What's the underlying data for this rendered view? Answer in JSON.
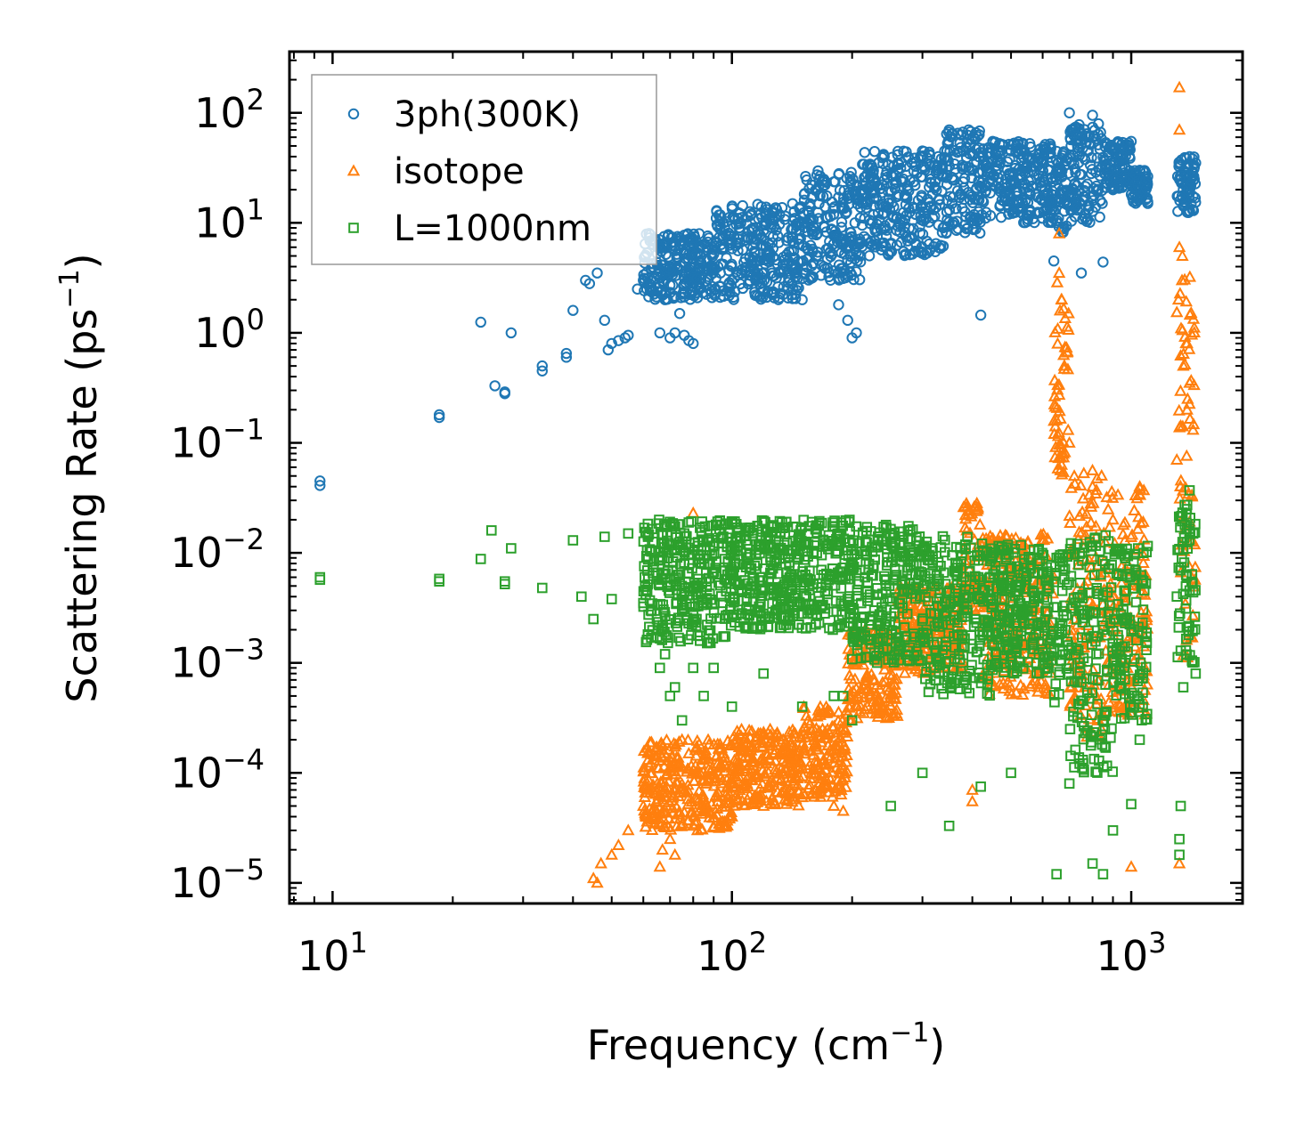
{
  "chart_data": {
    "type": "scatter",
    "title": "",
    "xlabel": "Frequency (cm",
    "xlabel_sup": "−1",
    "xlabel_end": ")",
    "ylabel": "Scattering Rate (ps",
    "ylabel_sup": "−1",
    "ylabel_end": ")",
    "xscale": "log",
    "yscale": "log",
    "xlim": [
      7.8,
      1900
    ],
    "ylim": [
      6.5e-06,
      360
    ],
    "x_ticks": [
      {
        "value": 10,
        "base": "10",
        "exp": "1"
      },
      {
        "value": 100,
        "base": "10",
        "exp": "2"
      },
      {
        "value": 1000,
        "base": "10",
        "exp": "3"
      }
    ],
    "y_ticks": [
      {
        "value": 100,
        "base": "10",
        "exp": "2"
      },
      {
        "value": 10,
        "base": "10",
        "exp": "1"
      },
      {
        "value": 1,
        "base": "10",
        "exp": "0"
      },
      {
        "value": 0.1,
        "base": "10",
        "exp": "−1"
      },
      {
        "value": 0.01,
        "base": "10",
        "exp": "−2"
      },
      {
        "value": 0.001,
        "base": "10",
        "exp": "−3"
      },
      {
        "value": 0.0001,
        "base": "10",
        "exp": "−4"
      },
      {
        "value": 1e-05,
        "base": "10",
        "exp": "−5"
      }
    ],
    "legend_position": "top-left",
    "series": [
      {
        "name": "3ph(300K)",
        "marker": "circle",
        "color": "#1f77b4",
        "points": [
          [
            9.3,
            0.045
          ],
          [
            9.3,
            0.041
          ],
          [
            18.5,
            0.18
          ],
          [
            18.5,
            0.17
          ],
          [
            23.5,
            1.25
          ],
          [
            25.5,
            0.33
          ],
          [
            27,
            0.29
          ],
          [
            27,
            0.28
          ],
          [
            28,
            1.0
          ],
          [
            33.5,
            0.5
          ],
          [
            33.5,
            0.45
          ],
          [
            38.5,
            0.65
          ],
          [
            38.5,
            0.6
          ],
          [
            40,
            1.6
          ],
          [
            43,
            3.0
          ],
          [
            44,
            2.8
          ],
          [
            46,
            3.5
          ],
          [
            48,
            1.3
          ],
          [
            49,
            0.7
          ],
          [
            50,
            0.8
          ],
          [
            52,
            0.85
          ],
          [
            54,
            0.9
          ],
          [
            55,
            0.95
          ],
          [
            58,
            2.5
          ],
          [
            60,
            3.0
          ],
          [
            62,
            8.0
          ],
          [
            64,
            7.0
          ],
          [
            66,
            1.0
          ],
          [
            68,
            2.0
          ],
          [
            70,
            0.9
          ],
          [
            72,
            1.0
          ],
          [
            74,
            1.5
          ],
          [
            76,
            0.95
          ],
          [
            78,
            0.85
          ],
          [
            80,
            0.8
          ],
          [
            100,
            3.0
          ],
          [
            120,
            2.5
          ],
          [
            150,
            2.0
          ],
          [
            170,
            4.0
          ],
          [
            185,
            1.8
          ],
          [
            195,
            1.3
          ],
          [
            200,
            0.9
          ],
          [
            205,
            1.0
          ],
          [
            210,
            5.0
          ],
          [
            300,
            45
          ],
          [
            350,
            70
          ],
          [
            400,
            30
          ],
          [
            420,
            1.45
          ],
          [
            450,
            55
          ],
          [
            500,
            45
          ],
          [
            550,
            40
          ],
          [
            600,
            35
          ],
          [
            640,
            4.5
          ],
          [
            700,
            100
          ],
          [
            750,
            3.5
          ],
          [
            800,
            95
          ],
          [
            850,
            4.4
          ],
          [
            900,
            20
          ],
          [
            950,
            40
          ],
          [
            1000,
            55
          ],
          [
            1050,
            30
          ],
          [
            1100,
            15
          ],
          [
            1320,
            25
          ],
          [
            1350,
            20
          ],
          [
            1400,
            40
          ],
          [
            1450,
            35
          ]
        ],
        "bands": [
          {
            "x": [
              60,
              90
            ],
            "ylo": 2.0,
            "yhi": 8.0
          },
          {
            "x": [
              90,
              150
            ],
            "ylo": 2.0,
            "yhi": 15.0
          },
          {
            "x": [
              150,
              210
            ],
            "ylo": 3.0,
            "yhi": 30.0
          },
          {
            "x": [
              210,
              340
            ],
            "ylo": 5.0,
            "yhi": 45.0
          },
          {
            "x": [
              340,
              420
            ],
            "ylo": 8.0,
            "yhi": 70.0
          },
          {
            "x": [
              420,
              640
            ],
            "ylo": 10.0,
            "yhi": 55.0
          },
          {
            "x": [
              640,
              700
            ],
            "ylo": 8.0,
            "yhi": 45.0
          },
          {
            "x": [
              700,
              850
            ],
            "ylo": 10.0,
            "yhi": 80.0
          },
          {
            "x": [
              850,
              1000
            ],
            "ylo": 20.0,
            "yhi": 55.0
          },
          {
            "x": [
              1000,
              1100
            ],
            "ylo": 15.0,
            "yhi": 30.0
          },
          {
            "x": [
              1300,
              1450
            ],
            "ylo": 12.0,
            "yhi": 40.0
          }
        ]
      },
      {
        "name": "isotope",
        "marker": "triangle",
        "color": "#ff7f0e",
        "points": [
          [
            45,
            1.1e-05
          ],
          [
            46,
            1e-05
          ],
          [
            47,
            1.5e-05
          ],
          [
            50,
            1.8e-05
          ],
          [
            52,
            2.2e-05
          ],
          [
            55,
            3e-05
          ],
          [
            60,
            5e-05
          ],
          [
            63,
            7e-05
          ],
          [
            66,
            1.4e-05
          ],
          [
            67,
            2e-05
          ],
          [
            70,
            2.5e-05
          ],
          [
            72,
            1.8e-05
          ],
          [
            75,
            0.0002
          ],
          [
            78,
            0.00015
          ],
          [
            80,
            0.023
          ],
          [
            100,
            4e-05
          ],
          [
            120,
            5e-05
          ],
          [
            150,
            6e-05
          ],
          [
            180,
            5e-05
          ],
          [
            190,
            4.5e-05
          ],
          [
            400,
            5.5e-05
          ],
          [
            400,
            7e-05
          ],
          [
            660,
            8.0
          ],
          [
            660,
            3.5
          ],
          [
            670,
            2.0
          ],
          [
            680,
            0.5
          ],
          [
            700,
            0.1
          ],
          [
            720,
            0.05
          ],
          [
            800,
            0.04
          ],
          [
            900,
            0.02
          ],
          [
            1000,
            1.4e-05
          ],
          [
            1050,
            0.04
          ],
          [
            1320,
            170
          ],
          [
            1320,
            70
          ],
          [
            1320,
            6.0
          ],
          [
            1340,
            3.0
          ],
          [
            1350,
            0.5
          ],
          [
            1380,
            0.2
          ],
          [
            1400,
            0.35
          ],
          [
            1320,
            1.5e-05
          ]
        ],
        "bands": [
          {
            "x": [
              60,
              100
            ],
            "ylo": 3e-05,
            "yhi": 0.0002
          },
          {
            "x": [
              100,
              150
            ],
            "ylo": 5e-05,
            "yhi": 0.00025
          },
          {
            "x": [
              150,
              195
            ],
            "ylo": 6e-05,
            "yhi": 0.0004
          },
          {
            "x": [
              195,
              260
            ],
            "ylo": 0.0003,
            "yhi": 0.002
          },
          {
            "x": [
              260,
              380
            ],
            "ylo": 0.0008,
            "yhi": 0.005
          },
          {
            "x": [
              380,
              420
            ],
            "ylo": 0.003,
            "yhi": 0.03
          },
          {
            "x": [
              420,
              640
            ],
            "ylo": 0.0005,
            "yhi": 0.015
          },
          {
            "x": [
              640,
              700
            ],
            "ylo": 0.05,
            "yhi": 3.0
          },
          {
            "x": [
              700,
              850
            ],
            "ylo": 0.0002,
            "yhi": 0.06
          },
          {
            "x": [
              850,
              1100
            ],
            "ylo": 0.0003,
            "yhi": 0.04
          },
          {
            "x": [
              1300,
              1450
            ],
            "ylo": 0.001,
            "yhi": 5.0
          }
        ]
      },
      {
        "name": "L=1000nm",
        "marker": "square",
        "color": "#2ca02c",
        "points": [
          [
            9.3,
            0.006
          ],
          [
            9.3,
            0.0057
          ],
          [
            18.5,
            0.0058
          ],
          [
            18.5,
            0.0055
          ],
          [
            23.5,
            0.0088
          ],
          [
            25,
            0.016
          ],
          [
            27,
            0.0055
          ],
          [
            27,
            0.0052
          ],
          [
            28,
            0.011
          ],
          [
            33.5,
            0.0048
          ],
          [
            40,
            0.013
          ],
          [
            42,
            0.004
          ],
          [
            45,
            0.0025
          ],
          [
            48,
            0.014
          ],
          [
            50,
            0.0038
          ],
          [
            55,
            0.015
          ],
          [
            60,
            0.0035
          ],
          [
            66,
            0.0009
          ],
          [
            68,
            0.0012
          ],
          [
            70,
            0.0005
          ],
          [
            72,
            0.0006
          ],
          [
            75,
            0.0003
          ],
          [
            80,
            0.0009
          ],
          [
            85,
            0.0005
          ],
          [
            90,
            0.0009
          ],
          [
            100,
            0.0004
          ],
          [
            120,
            0.0008
          ],
          [
            150,
            0.0004
          ],
          [
            180,
            0.0005
          ],
          [
            190,
            0.0005
          ],
          [
            200,
            0.0003
          ],
          [
            250,
            5e-05
          ],
          [
            300,
            0.0001
          ],
          [
            350,
            3.3e-05
          ],
          [
            420,
            7.5e-05
          ],
          [
            500,
            0.0001
          ],
          [
            650,
            1.2e-05
          ],
          [
            700,
            8e-05
          ],
          [
            800,
            1.5e-05
          ],
          [
            850,
            1.2e-05
          ],
          [
            900,
            3e-05
          ],
          [
            1000,
            5.2e-05
          ],
          [
            1050,
            0.0002
          ],
          [
            1320,
            1.8e-05
          ],
          [
            1320,
            2.5e-05
          ],
          [
            1330,
            5e-05
          ],
          [
            1350,
            0.0006
          ],
          [
            1400,
            0.037
          ],
          [
            1450,
            0.0008
          ]
        ],
        "bands": [
          {
            "x": [
              60,
              100
            ],
            "ylo": 0.0015,
            "yhi": 0.02
          },
          {
            "x": [
              100,
              200
            ],
            "ylo": 0.002,
            "yhi": 0.02
          },
          {
            "x": [
              200,
              300
            ],
            "ylo": 0.001,
            "yhi": 0.018
          },
          {
            "x": [
              300,
              450
            ],
            "ylo": 0.0005,
            "yhi": 0.015
          },
          {
            "x": [
              450,
              640
            ],
            "ylo": 0.0008,
            "yhi": 0.012
          },
          {
            "x": [
              640,
              700
            ],
            "ylo": 0.0004,
            "yhi": 0.012
          },
          {
            "x": [
              700,
              900
            ],
            "ylo": 0.0001,
            "yhi": 0.015
          },
          {
            "x": [
              900,
              1100
            ],
            "ylo": 0.0003,
            "yhi": 0.012
          },
          {
            "x": [
              1300,
              1450
            ],
            "ylo": 0.001,
            "yhi": 0.03
          }
        ]
      }
    ]
  }
}
